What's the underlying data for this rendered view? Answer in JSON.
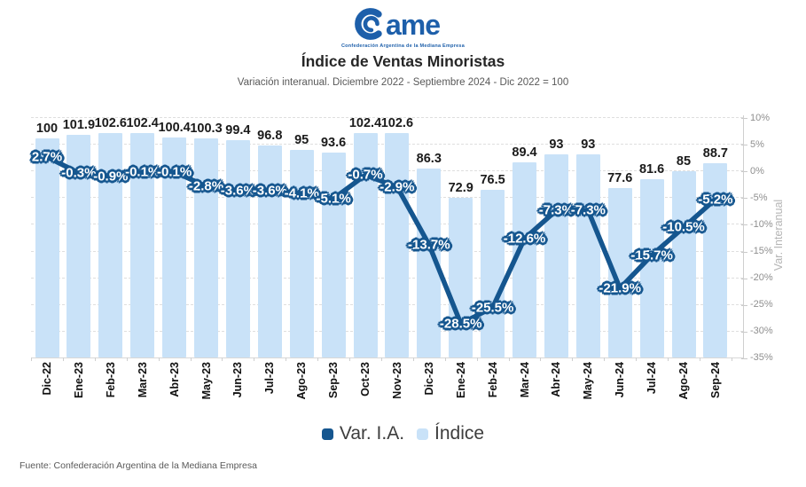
{
  "header": {
    "logo_text": "ame",
    "logo_subtext": "Confederación Argentina de la Mediana Empresa",
    "title": "Índice de Ventas Minoristas",
    "subtitle": "Variación interanual. Diciembre 2022 - Septiembre 2024 - Dic 2022 = 100"
  },
  "chart_data": {
    "type": "combo-bar-line",
    "title": "Índice de Ventas Minoristas",
    "categories": [
      "Dic-22",
      "Ene-23",
      "Feb-23",
      "Mar-23",
      "Abr-23",
      "May-23",
      "Jun-23",
      "Jul-23",
      "Ago-23",
      "Sep-23",
      "Oct-23",
      "Nov-23",
      "Dic-23",
      "Ene-24",
      "Feb-24",
      "Mar-24",
      "Abr-24",
      "May-24",
      "Jun-24",
      "Jul-24",
      "Ago-24",
      "Sep-24"
    ],
    "series": [
      {
        "name": "Índice",
        "type": "bar",
        "values": [
          100,
          101.9,
          102.6,
          102.4,
          100.4,
          100.3,
          99.4,
          96.8,
          95,
          93.6,
          102.4,
          102.6,
          86.3,
          72.9,
          76.5,
          89.4,
          93,
          93,
          77.6,
          81.6,
          85,
          88.7
        ],
        "labels": [
          "100",
          "101.9",
          "102.6",
          "102.4",
          "100.4",
          "100.3",
          "99.4",
          "96.8",
          "95",
          "93.6",
          "102.4",
          "102.6",
          "86.3",
          "72.9",
          "76.5",
          "89.4",
          "93",
          "93",
          "77.6",
          "81.6",
          "85",
          "88.7"
        ],
        "color": "#C9E2F8"
      },
      {
        "name": "Var. I.A.",
        "type": "line",
        "axis": "right",
        "values": [
          2.7,
          -0.3,
          -0.9,
          -0.1,
          -0.1,
          -2.8,
          -3.6,
          -3.6,
          -4.1,
          -5.1,
          -0.7,
          -2.9,
          -13.7,
          -28.5,
          -25.5,
          -12.6,
          -7.3,
          -7.3,
          -21.9,
          -15.7,
          -10.5,
          -5.2
        ],
        "labels": [
          "2.7%",
          "-0.3%",
          "-0.9%",
          "-0.1%",
          "-0.1%",
          "-2.8%",
          "-3.6%",
          "-3.6%",
          "-4.1%",
          "-5.1%",
          "-0.7%",
          "-2.9%",
          "-13.7%",
          "-28.5%",
          "-25.5%",
          "-12.6%",
          "-7.3%",
          "-7.3%",
          "-21.9%",
          "-15.7%",
          "-10.5%",
          "-5.2%"
        ],
        "color": "#15568F"
      }
    ],
    "right_axis": {
      "label": "Var. Interanual",
      "min": -35,
      "max": 10,
      "ticks": [
        {
          "v": 10,
          "label": "10%"
        },
        {
          "v": 5,
          "label": "5%"
        },
        {
          "v": 0,
          "label": "0%"
        },
        {
          "v": -5,
          "label": "-5%"
        },
        {
          "v": -10,
          "label": "-10%"
        },
        {
          "v": -15,
          "label": "-15%"
        },
        {
          "v": -20,
          "label": "-20%"
        },
        {
          "v": -25,
          "label": "-25%"
        },
        {
          "v": -30,
          "label": "-30%"
        },
        {
          "v": -35,
          "label": "-35%"
        }
      ]
    },
    "grid": "dashed-horizontal",
    "legend_position": "bottom",
    "colors": {
      "bar": "#C9E2F8",
      "line": "#15568F",
      "bar_label": "#1b1b1b",
      "axis_text": "#8f8f8f",
      "logo_blue": "#1D5FAA"
    }
  },
  "legend": {
    "items": [
      {
        "label": "Var. I.A.",
        "color": "#15568F"
      },
      {
        "label": "Índice",
        "color": "#C9E2F8"
      }
    ]
  },
  "footer": {
    "source": "Fuente: Confederación Argentina de la Mediana Empresa"
  }
}
